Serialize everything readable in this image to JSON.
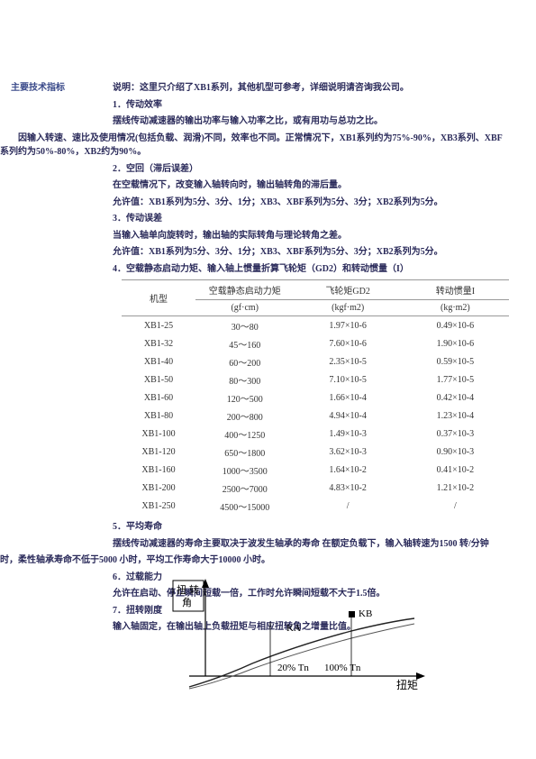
{
  "side_label": "主要技术指标",
  "intro": "说明：这里只介绍了XB1系列，其他机型可参考，详细说明请咨询我公司。",
  "s1": {
    "title": "1．传动效率",
    "p1": "摆线传动减速器的输出功率与输入功率之比，或有用功与总功之比。",
    "p2": "因输入转速、速比及使用情况(包括负载、润滑)不同，效率也不同。正常情况下，XB1系列约为75%-90%，XB3系列、XBF系列约为50%-80%，XB2约为90%。"
  },
  "s2": {
    "title": "2．空回（滞后误差）",
    "p1": "在空载情况下，改变输入轴转向时，输出轴转角的滞后量。",
    "p2": "允许值：XB1系列为5分、3分、1分；XB3、XBF系列为5分、3分；XB2系列为5分。"
  },
  "s3": {
    "title": "3．传动误差",
    "p1": "当输入轴单向旋转时，输出轴的实际转角与理论转角之差。",
    "p2": "允许值：XB1系列为5分、3分、1分；XB3、XBF系列为5分、3分；XB2系列为5分。"
  },
  "s4": {
    "title": "4．空载静态启动力矩、输入轴上惯量折算飞轮矩（GD2）和转动惯量（I）"
  },
  "table": {
    "headers_row1": [
      "机型",
      "空载静态启动力矩",
      "飞轮矩GD2",
      "转动惯量I"
    ],
    "headers_row2": [
      "",
      "(gf·cm)",
      "(kgf·m2)",
      "(kg·m2)"
    ],
    "rows": [
      [
        "XB1-25",
        "30～80",
        "1.97×10-6",
        "0.49×10-6"
      ],
      [
        "XB1-32",
        "45～160",
        "7.60×10-6",
        "1.90×10-6"
      ],
      [
        "XB1-40",
        "60～200",
        "2.35×10-5",
        "0.59×10-5"
      ],
      [
        "XB1-50",
        "80～300",
        "7.10×10-5",
        "1.77×10-5"
      ],
      [
        "XB1-60",
        "120～500",
        "1.66×10-4",
        "0.42×10-4"
      ],
      [
        "XB1-80",
        "200～800",
        "4.94×10-4",
        "1.23×10-4"
      ],
      [
        "XB1-100",
        "400～1250",
        "1.49×10-3",
        "0.37×10-3"
      ],
      [
        "XB1-120",
        "650～1800",
        "3.62×10-3",
        "0.90×10-3"
      ],
      [
        "XB1-160",
        "1000～3500",
        "1.64×10-2",
        "0.41×10-2"
      ],
      [
        "XB1-200",
        "2500～7000",
        "4.83×10-2",
        "1.21×10-2"
      ],
      [
        "XB1-250",
        "4500～15000",
        "/",
        "/"
      ]
    ]
  },
  "s5": {
    "title": "5．平均寿命",
    "p1": "摆线传动减速器的寿命主要取决于波发生轴承的寿命 在额定负载下，输入轴转速为1500 转/分钟",
    "p2": "时，柔性轴承寿命不低于5000 小时，平均工作寿命大于10000 小时。"
  },
  "s6": {
    "title": "6．过载能力",
    "p1": "允许在启动、停止瞬间短载一倍，工作时允许瞬间短载不大于1.5倍。"
  },
  "s7": {
    "title": "7．扭转刚度",
    "p1": "输入轴固定，在输出轴上负载扭矩与相应扭转角之增量比值。"
  },
  "chart": {
    "ylabel": "扭转角",
    "xlabel": "扭矩",
    "labels": {
      "ka": "KA",
      "kb": "KB",
      "t20": "20% Tn",
      "t100": "100% Tn"
    },
    "axis_color": "#000000",
    "curve_color1": "#222222",
    "curve_color2": "#555555",
    "font_size": 11
  }
}
